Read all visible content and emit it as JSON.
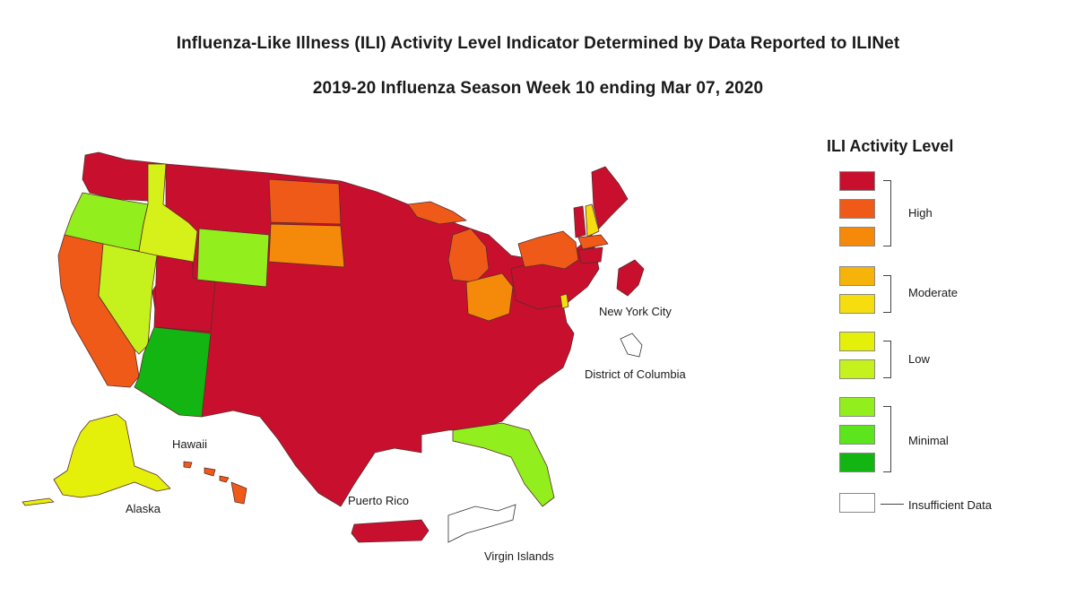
{
  "header": {
    "title": "Influenza-Like Illness (ILI) Activity Level Indicator Determined by Data Reported to ILINet",
    "subtitle": "2019-20 Influenza Season Week 10 ending Mar 07, 2020"
  },
  "map_labels": {
    "new_york_city": "New York City",
    "district_of_columbia": "District of Columbia",
    "hawaii": "Hawaii",
    "alaska": "Alaska",
    "puerto_rico": "Puerto Rico",
    "virgin_islands": "Virgin Islands"
  },
  "legend": {
    "title": "ILI Activity Level",
    "swatches": [
      "#c8102e",
      "#f05a19",
      "#f58a0a",
      "#f6b40a",
      "#f5dd10",
      "#e4f00a",
      "#c5f21c",
      "#93ee1e",
      "#5ce51c",
      "#12b512",
      "#ffffff"
    ],
    "groups": {
      "high": "High",
      "moderate": "Moderate",
      "low": "Low",
      "minimal": "Minimal",
      "insufficient": "Insufficient Data"
    }
  }
}
